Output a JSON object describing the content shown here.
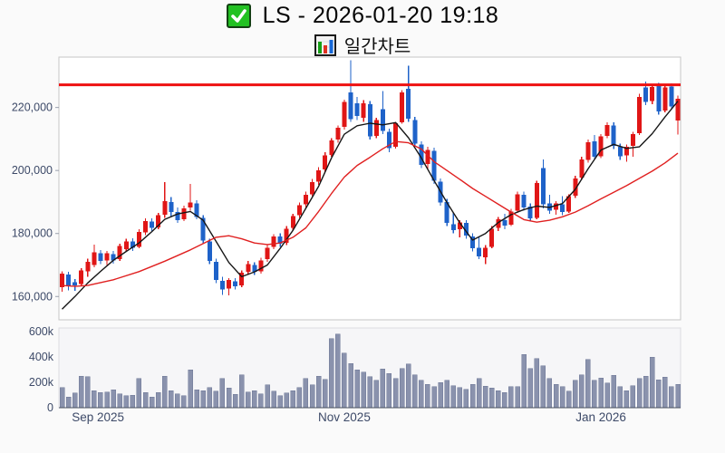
{
  "header": {
    "checkbox_state": "checked",
    "title": "LS - 2026-01-20 19:18",
    "subtitle": "일간차트"
  },
  "colors": {
    "up_candle": "#e01616",
    "down_candle": "#1e62c9",
    "volume_bar": "#8a92ad",
    "volume_bar_edge": "#6f7896",
    "ma_short": "#161616",
    "ma_long": "#e02020",
    "resistance_line": "#ee1111",
    "axis_text": "#3d4a68",
    "pane_border": "#c6c6c6",
    "volume_pane_fill": "#f6f6f8",
    "main_pane_fill": "#ffffff",
    "volume_axis_line": "#4a5160",
    "checkbox_green": "#22c122",
    "icon_bar_green": "#16a016",
    "icon_bar_red": "#e03020",
    "icon_bar_blue": "#1668d8"
  },
  "chart_data": {
    "type": "candlestick",
    "title": "LS - 2026-01-20 19:18",
    "subtitle": "일간차트",
    "legend_position": "none",
    "grid": false,
    "price_axis": {
      "min": 152600,
      "max": 236000,
      "ticks": [
        {
          "value": 220000,
          "label": "220,000"
        },
        {
          "value": 200000,
          "label": "200,000"
        },
        {
          "value": 180000,
          "label": "180,000"
        },
        {
          "value": 160000,
          "label": "160,000"
        }
      ]
    },
    "volume_axis": {
      "min": 0,
      "max": 630000,
      "ticks": [
        {
          "value": 600000,
          "label": "600k"
        },
        {
          "value": 400000,
          "label": "400k"
        },
        {
          "value": 200000,
          "label": "200k"
        },
        {
          "value": 0,
          "label": "0"
        }
      ]
    },
    "x_axis": {
      "ticks": [
        {
          "index": 5.6,
          "label": "Sep 2025"
        },
        {
          "index": 44,
          "label": "Nov 2025"
        },
        {
          "index": 84,
          "label": "Jan 2026"
        }
      ]
    },
    "resistance_level": 227200,
    "candles": [
      [
        163000,
        168000,
        161500,
        167300
      ],
      [
        167000,
        167800,
        162000,
        163200
      ],
      [
        164500,
        165500,
        161800,
        163600
      ],
      [
        164000,
        169000,
        163300,
        168300
      ],
      [
        168000,
        172000,
        166300,
        171000
      ],
      [
        170000,
        176500,
        169300,
        174000
      ],
      [
        173800,
        174800,
        170300,
        171300
      ],
      [
        171500,
        174500,
        170000,
        173800
      ],
      [
        173500,
        174500,
        170500,
        171500
      ],
      [
        171800,
        176800,
        171300,
        176000
      ],
      [
        175000,
        178300,
        174300,
        177500
      ],
      [
        177500,
        178500,
        174500,
        175500
      ],
      [
        175800,
        181300,
        175300,
        180500
      ],
      [
        180300,
        184800,
        179500,
        184000
      ],
      [
        183800,
        184800,
        180800,
        181800
      ],
      [
        182000,
        186500,
        181300,
        185800
      ],
      [
        186000,
        196300,
        185000,
        190300
      ],
      [
        190000,
        191500,
        185500,
        186800
      ],
      [
        186800,
        188300,
        183300,
        184300
      ],
      [
        184500,
        188800,
        184000,
        188000
      ],
      [
        188300,
        195800,
        187300,
        189800
      ],
      [
        189500,
        190500,
        184500,
        185300
      ],
      [
        185000,
        185800,
        176800,
        177800
      ],
      [
        177500,
        178300,
        170300,
        171300
      ],
      [
        171000,
        172000,
        164300,
        165300
      ],
      [
        165000,
        166300,
        160500,
        162300
      ],
      [
        162500,
        165800,
        160300,
        165300
      ],
      [
        164800,
        165800,
        162300,
        163300
      ],
      [
        163500,
        168300,
        163000,
        167500
      ],
      [
        167800,
        171300,
        166800,
        170300
      ],
      [
        170000,
        170800,
        166800,
        167800
      ],
      [
        168000,
        172300,
        167300,
        171500
      ],
      [
        171800,
        176300,
        171000,
        175500
      ],
      [
        175800,
        179800,
        175000,
        179000
      ],
      [
        179000,
        180000,
        175800,
        176800
      ],
      [
        177000,
        182300,
        176300,
        181500
      ],
      [
        181800,
        186300,
        181000,
        185500
      ],
      [
        185800,
        189800,
        185000,
        189000
      ],
      [
        189300,
        193300,
        188300,
        192300
      ],
      [
        192500,
        197300,
        191800,
        196300
      ],
      [
        196500,
        201000,
        195500,
        200000
      ],
      [
        200300,
        205800,
        199500,
        204800
      ],
      [
        205000,
        210300,
        204300,
        209500
      ],
      [
        209800,
        214300,
        208800,
        213500
      ],
      [
        213800,
        222500,
        213000,
        221800
      ],
      [
        224800,
        235000,
        215500,
        216300
      ],
      [
        221300,
        223300,
        216000,
        217300
      ],
      [
        216800,
        222300,
        215500,
        221400
      ],
      [
        221000,
        222000,
        209800,
        210800
      ],
      [
        211000,
        216800,
        210300,
        216000
      ],
      [
        219500,
        225200,
        211500,
        212500
      ],
      [
        212300,
        213300,
        205800,
        207100
      ],
      [
        207500,
        215500,
        207000,
        215000
      ],
      [
        215300,
        225500,
        214800,
        224800
      ],
      [
        226000,
        233200,
        215500,
        216500
      ],
      [
        216000,
        217000,
        207500,
        208500
      ],
      [
        208300,
        209300,
        200800,
        201800
      ],
      [
        202000,
        207500,
        200500,
        206500
      ],
      [
        206300,
        207300,
        195800,
        196800
      ],
      [
        196500,
        197500,
        188800,
        189800
      ],
      [
        190000,
        191000,
        182300,
        183300
      ],
      [
        183000,
        186500,
        180000,
        181000
      ],
      [
        181300,
        184300,
        178800,
        183500
      ],
      [
        183300,
        184300,
        178300,
        179300
      ],
      [
        179000,
        180000,
        174300,
        175300
      ],
      [
        175500,
        178800,
        171800,
        172800
      ],
      [
        172500,
        176300,
        170300,
        175500
      ],
      [
        175800,
        182300,
        175300,
        181500
      ],
      [
        181800,
        185300,
        180800,
        184500
      ],
      [
        184300,
        186300,
        181300,
        182500
      ],
      [
        182800,
        187800,
        182300,
        187000
      ],
      [
        187300,
        193300,
        186500,
        192500
      ],
      [
        192300,
        193300,
        187300,
        188300
      ],
      [
        188500,
        189500,
        183800,
        184800
      ],
      [
        185000,
        196800,
        184500,
        196000
      ],
      [
        200800,
        203500,
        188000,
        189300
      ],
      [
        189500,
        192300,
        186300,
        187300
      ],
      [
        187500,
        190300,
        186000,
        189500
      ],
      [
        189300,
        191800,
        185800,
        186800
      ],
      [
        187000,
        192500,
        186500,
        191800
      ],
      [
        192000,
        198300,
        191300,
        197500
      ],
      [
        197800,
        204300,
        197000,
        203500
      ],
      [
        203300,
        209800,
        202500,
        209000
      ],
      [
        209300,
        211300,
        203300,
        204300
      ],
      [
        204500,
        211500,
        204000,
        210800
      ],
      [
        211000,
        215300,
        210300,
        214500
      ],
      [
        214300,
        215300,
        206800,
        207800
      ],
      [
        207500,
        208500,
        203300,
        204500
      ],
      [
        204800,
        208300,
        202800,
        207500
      ],
      [
        207800,
        212300,
        204300,
        211500
      ],
      [
        211800,
        224300,
        211300,
        223300
      ],
      [
        226300,
        228300,
        220800,
        221800
      ],
      [
        222000,
        227300,
        221000,
        226500
      ],
      [
        226800,
        227800,
        217800,
        218800
      ],
      [
        219000,
        227000,
        218500,
        226300
      ],
      [
        226600,
        227600,
        219300,
        220300
      ],
      [
        215800,
        223800,
        211400,
        222800
      ]
    ],
    "volumes": [
      160000,
      85000,
      115000,
      250000,
      245000,
      135000,
      120000,
      125000,
      140000,
      110000,
      95000,
      100000,
      230000,
      120000,
      85000,
      120000,
      250000,
      135000,
      110000,
      95000,
      300000,
      140000,
      135000,
      160000,
      130000,
      230000,
      155000,
      105000,
      260000,
      125000,
      135000,
      110000,
      180000,
      130000,
      95000,
      115000,
      135000,
      160000,
      230000,
      180000,
      250000,
      225000,
      545000,
      580000,
      430000,
      350000,
      300000,
      280000,
      245000,
      215000,
      305000,
      270000,
      230000,
      310000,
      345000,
      260000,
      215000,
      185000,
      165000,
      200000,
      215000,
      175000,
      160000,
      145000,
      185000,
      230000,
      170000,
      155000,
      135000,
      120000,
      165000,
      165000,
      420000,
      310000,
      390000,
      330000,
      230000,
      185000,
      165000,
      130000,
      215000,
      260000,
      380000,
      215000,
      235000,
      195000,
      255000,
      165000,
      135000,
      175000,
      230000,
      250000,
      400000,
      220000,
      240000,
      165000,
      185000
    ],
    "ma_short_points": [
      [
        0,
        156000
      ],
      [
        2,
        160000
      ],
      [
        4,
        164300
      ],
      [
        6,
        168000
      ],
      [
        8,
        171500
      ],
      [
        10,
        174300
      ],
      [
        12,
        177000
      ],
      [
        14,
        180600
      ],
      [
        16,
        184500
      ],
      [
        18,
        186200
      ],
      [
        20,
        187000
      ],
      [
        22,
        184200
      ],
      [
        24,
        177500
      ],
      [
        26,
        170800
      ],
      [
        28,
        166300
      ],
      [
        30,
        167800
      ],
      [
        32,
        170000
      ],
      [
        34,
        175300
      ],
      [
        36,
        181000
      ],
      [
        38,
        188000
      ],
      [
        40,
        195000
      ],
      [
        42,
        204000
      ],
      [
        44,
        211500
      ],
      [
        46,
        214200
      ],
      [
        48,
        215000
      ],
      [
        50,
        214500
      ],
      [
        52,
        215200
      ],
      [
        54,
        210400
      ],
      [
        56,
        204000
      ],
      [
        58,
        196800
      ],
      [
        60,
        189800
      ],
      [
        62,
        183400
      ],
      [
        64,
        177900
      ],
      [
        66,
        180000
      ],
      [
        68,
        183500
      ],
      [
        70,
        186000
      ],
      [
        72,
        187600
      ],
      [
        74,
        188700
      ],
      [
        76,
        188300
      ],
      [
        78,
        189500
      ],
      [
        80,
        194000
      ],
      [
        82,
        200500
      ],
      [
        84,
        206500
      ],
      [
        86,
        208300
      ],
      [
        88,
        207000
      ],
      [
        90,
        207500
      ],
      [
        92,
        211700
      ],
      [
        94,
        217000
      ],
      [
        96,
        222000
      ]
    ],
    "ma_long_points": [
      [
        0,
        163500
      ],
      [
        2,
        163200
      ],
      [
        4,
        163500
      ],
      [
        8,
        165300
      ],
      [
        12,
        167900
      ],
      [
        16,
        171200
      ],
      [
        20,
        174800
      ],
      [
        24,
        178800
      ],
      [
        26,
        179300
      ],
      [
        28,
        178300
      ],
      [
        30,
        177000
      ],
      [
        32,
        176500
      ],
      [
        34,
        177000
      ],
      [
        36,
        178800
      ],
      [
        38,
        181800
      ],
      [
        40,
        187000
      ],
      [
        42,
        192700
      ],
      [
        44,
        197900
      ],
      [
        46,
        201600
      ],
      [
        48,
        204200
      ],
      [
        50,
        206900
      ],
      [
        52,
        209200
      ],
      [
        54,
        208800
      ],
      [
        56,
        206800
      ],
      [
        58,
        202800
      ],
      [
        60,
        200000
      ],
      [
        62,
        197200
      ],
      [
        64,
        194300
      ],
      [
        66,
        191800
      ],
      [
        68,
        189300
      ],
      [
        70,
        186800
      ],
      [
        72,
        184400
      ],
      [
        74,
        183600
      ],
      [
        76,
        184200
      ],
      [
        78,
        185300
      ],
      [
        80,
        186800
      ],
      [
        82,
        188800
      ],
      [
        84,
        191000
      ],
      [
        86,
        193100
      ],
      [
        88,
        195200
      ],
      [
        90,
        197500
      ],
      [
        92,
        199800
      ],
      [
        94,
        202400
      ],
      [
        96,
        205500
      ]
    ]
  }
}
